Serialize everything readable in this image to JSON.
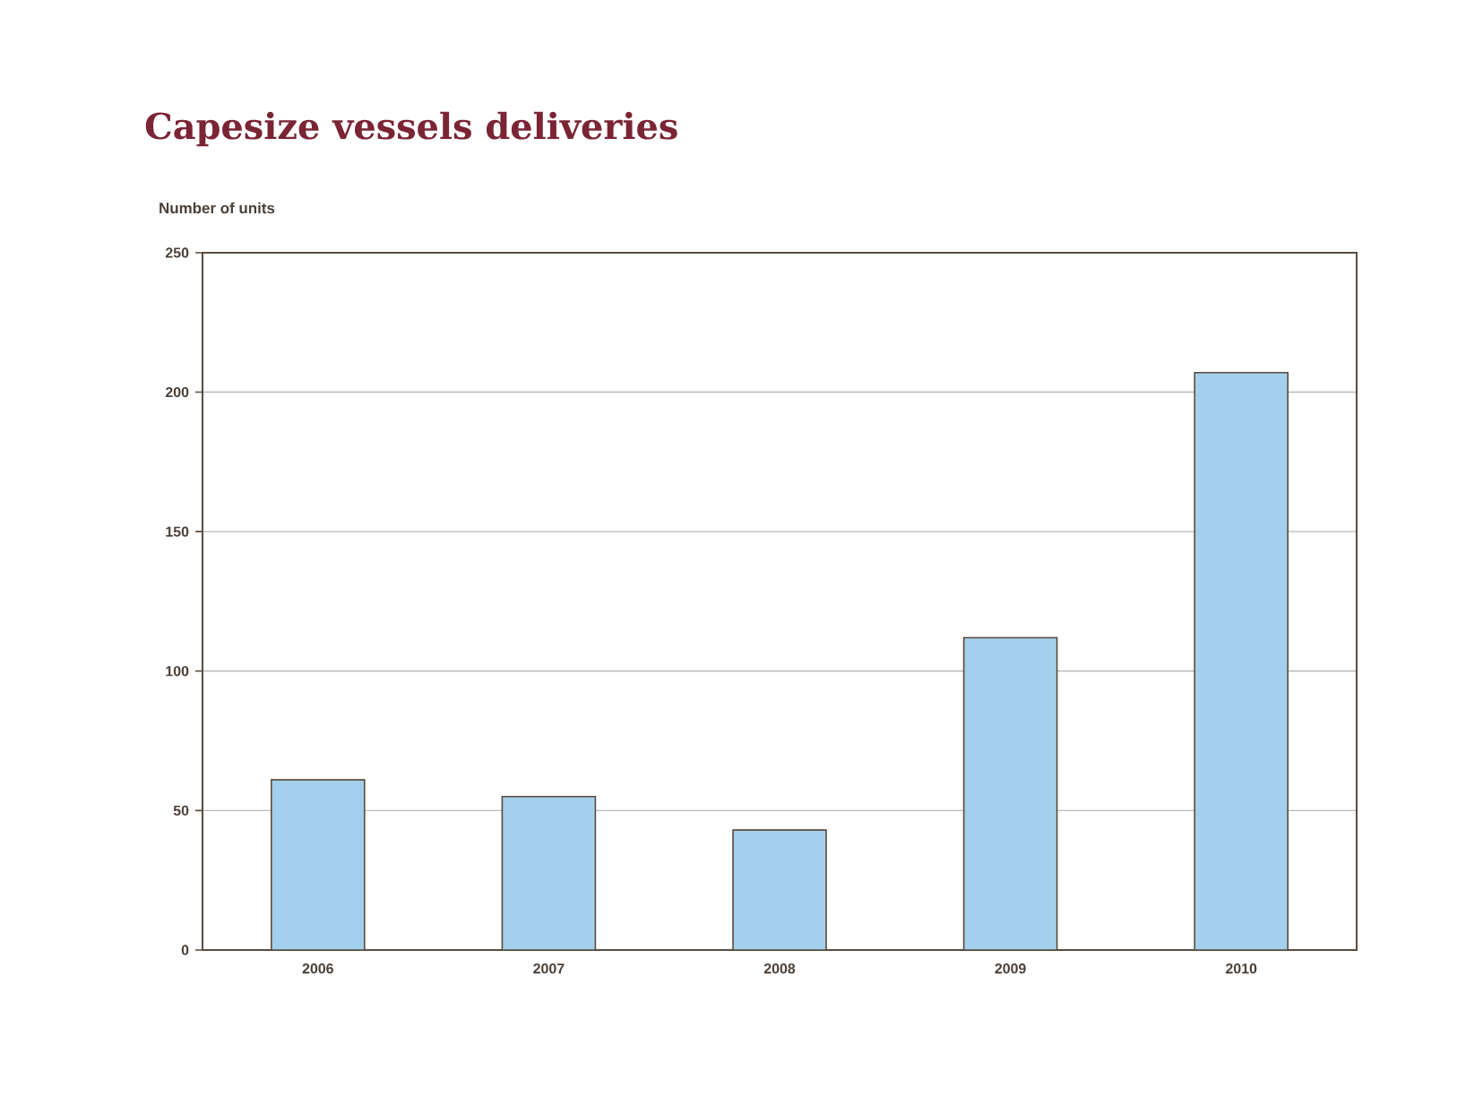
{
  "chart_data": {
    "type": "bar",
    "title": "Capesize vessels deliveries",
    "ylabel": "Number of units",
    "categories": [
      "2006",
      "2007",
      "2008",
      "2009",
      "2010"
    ],
    "values": [
      61,
      55,
      43,
      112,
      207
    ],
    "color": "#a3d0ec",
    "ylim": [
      0,
      250
    ],
    "yticks": [
      0,
      50,
      100,
      150,
      200,
      250
    ],
    "grid": "y"
  }
}
